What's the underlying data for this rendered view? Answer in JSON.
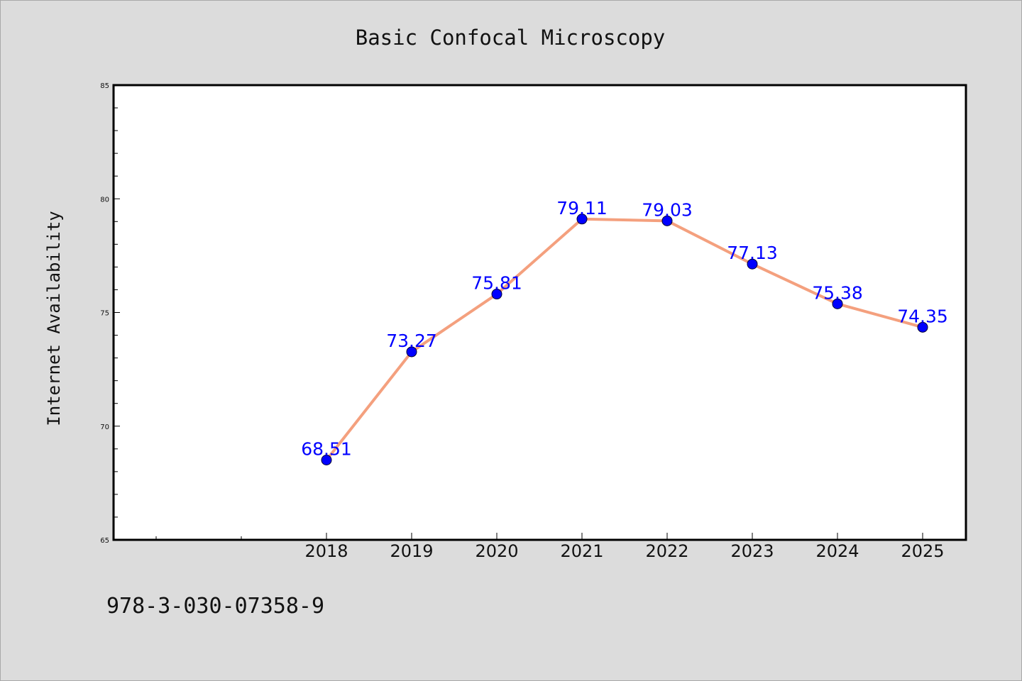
{
  "chart_data": {
    "type": "line",
    "title": "Basic Confocal Microscopy",
    "xlabel": "",
    "ylabel": "Internet Availability",
    "categories": [
      "2018",
      "2019",
      "2020",
      "2021",
      "2022",
      "2023",
      "2024",
      "2025"
    ],
    "series": [
      {
        "values": [
          68.51,
          73.27,
          75.81,
          79.11,
          79.03,
          77.13,
          75.38,
          74.35
        ],
        "labels": [
          "68.51",
          "73.27",
          "75.81",
          "79.11",
          "79.03",
          "77.13",
          "75.38",
          "74.35"
        ]
      }
    ],
    "ylim": [
      65,
      85
    ],
    "yticks": [
      "65",
      "70",
      "75",
      "80",
      "85"
    ],
    "grid": false,
    "line_color": "#f4a07e",
    "marker_color": "#0000ff",
    "label_color": "#0000ff"
  },
  "footer": {
    "isbn": "978-3-030-07358-9"
  }
}
